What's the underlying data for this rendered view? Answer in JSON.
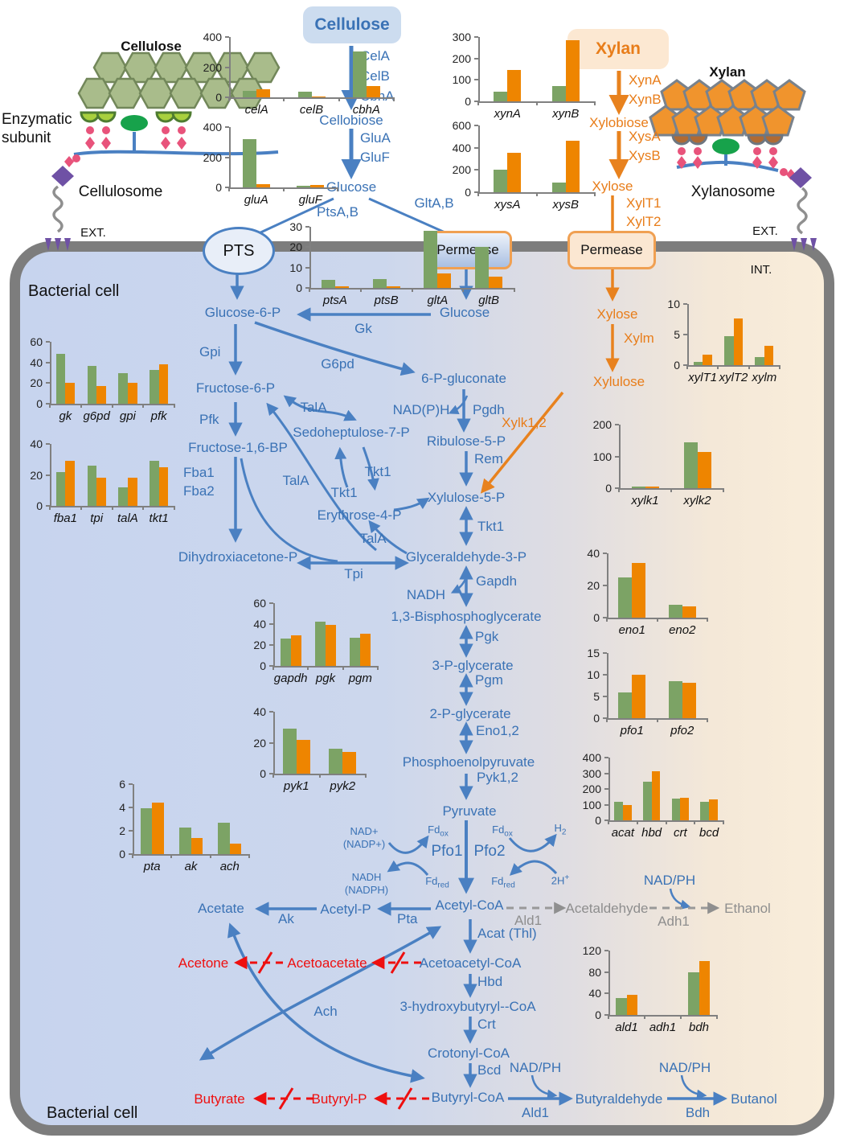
{
  "titles": {
    "cellulose_graphic": "Cellulose",
    "xylan_graphic": "Xylan",
    "enzymatic_subunit": "Enzymatic\nsubunit",
    "cellulosome": "Cellulosome",
    "xylanosome": "Xylanosome",
    "ext": "EXT.",
    "int": "INT.",
    "bacterial_cell": "Bacterial cell",
    "pts": "PTS",
    "permease": "Permease",
    "cellulose_box": "Cellulose",
    "xylan_box": "Xylan"
  },
  "ext": {
    "cela": "CelA",
    "celb": "CelB",
    "cbha": "CbhA",
    "cellobiose": "Cellobiose",
    "glua": "GluA",
    "gluf": "GluF",
    "glucose": "Glucose",
    "ptsab": "PtsA,B",
    "gltab": "GltA,B",
    "xyna": "XynA",
    "xynb": "XynB",
    "xylobiose": "Xylobiose",
    "xysa": "XysA",
    "xysb": "XysB",
    "xylose": "Xylose",
    "xylt1": "XylT1",
    "xylt2": "XylT2"
  },
  "glyc": {
    "glucose6p": "Glucose-6-P",
    "gk": "Gk",
    "glucose": "Glucose",
    "gpi": "Gpi",
    "fructose6p": "Fructose-6-P",
    "pfk": "Pfk",
    "fructose16bp": "Fructose-1,6-BP",
    "fba1": "Fba1",
    "fba2": "Fba2",
    "dhap": "Dihydroxiacetone-P",
    "tpi": "Tpi",
    "g6pd": "G6pd",
    "p6g": "6-P-gluconate",
    "nadph": "NAD(P)H",
    "pgdh": "Pgdh",
    "ribulose5p": "Ribulose-5-P",
    "rem": "Rem",
    "xylulose5p": "Xylulose-5-P",
    "s7p": "Sedoheptulose-7-P",
    "e4p": "Erythrose-4-P",
    "tala": "TalA",
    "tkt1": "Tkt1",
    "g3p": "Glyceraldehyde-3-P",
    "gapdh": "Gapdh",
    "nadh": "NADH",
    "bpg": "1,3-Bisphosphoglycerate",
    "pgk": "Pgk",
    "pg3": "3-P-glycerate",
    "pgm": "Pgm",
    "pg2": "2-P-glycerate",
    "eno": "Eno1,2",
    "pep": "Phosphoenolpyruvate",
    "pyk": "Pyk1,2"
  },
  "xyl": {
    "xylose": "Xylose",
    "xylm": "Xylm",
    "xylulose": "Xylulose",
    "xylk": "Xylk1,2"
  },
  "ferm": {
    "pyruvate": "Pyruvate",
    "pfo1": "Pfo1",
    "pfo2": "Pfo2",
    "nad_nadp": "NAD+\n(NADP+)",
    "nadh_nadph": "NADH\n(NADPH)",
    "fd": "Fd",
    "ox": "ox",
    "red": "red",
    "h": "H",
    "two": "2",
    "twoh": "2H",
    "plus": "+",
    "acetylcoa": "Acetyl-CoA",
    "pta": "Pta",
    "acetylp": "Acetyl-P",
    "ak": "Ak",
    "acetate": "Acetate",
    "ald1": "Ald1",
    "acetaldehyde": "Acetaldehyde",
    "adh1": "Adh1",
    "ethanol": "Ethanol",
    "nadph_cof": "NAD/PH",
    "acat": "Acat (Thl)",
    "acacoa": "Acetoacetyl-CoA",
    "hbd": "Hbd",
    "hbcoa": "3-hydroxybutyryl--CoA",
    "crt": "Crt",
    "crotonyl": "Crotonyl-CoA",
    "bcd": "Bcd",
    "butyrylcoa": "Butyryl-CoA",
    "ach": "Ach",
    "acetone": "Acetone",
    "acetoacetate": "Acetoacetate",
    "butyrate": "Butyrate",
    "butyrylp": "Butyryl-P",
    "butyraldehyde": "Butyraldehyde",
    "bdh": "Bdh",
    "butanol": "Butanol"
  },
  "colors": {
    "blue": "#4a80c2",
    "orange": "#e8821e",
    "green_bar": "#7ca365",
    "orange_bar": "#ee8500",
    "red": "#ee0f0f",
    "gray": "#8f8f8f",
    "membrane": "#7d7d7d"
  },
  "chart_data": [
    {
      "id": "cel",
      "type": "bar",
      "ymax": 400,
      "ticks": [
        0,
        200,
        400
      ],
      "categories": [
        "celA",
        "celB",
        "cbhA"
      ],
      "series": [
        {
          "name": "green",
          "values": [
            45,
            35,
            305
          ]
        },
        {
          "name": "orange",
          "values": [
            55,
            3,
            75
          ]
        }
      ]
    },
    {
      "id": "glu",
      "type": "bar",
      "ymax": 400,
      "ticks": [
        0,
        200,
        400
      ],
      "categories": [
        "gluA",
        "gluF"
      ],
      "series": [
        {
          "name": "green",
          "values": [
            320,
            10
          ]
        },
        {
          "name": "orange",
          "values": [
            20,
            15
          ]
        }
      ]
    },
    {
      "id": "xyn",
      "type": "bar",
      "ymax": 300,
      "ticks": [
        0,
        100,
        200,
        300
      ],
      "categories": [
        "xynA",
        "xynB"
      ],
      "series": [
        {
          "name": "green",
          "values": [
            45,
            70
          ]
        },
        {
          "name": "orange",
          "values": [
            145,
            285
          ]
        }
      ]
    },
    {
      "id": "xys",
      "type": "bar",
      "ymax": 600,
      "ticks": [
        0,
        200,
        400,
        600
      ],
      "categories": [
        "xysA",
        "xysB"
      ],
      "series": [
        {
          "name": "green",
          "values": [
            200,
            85
          ]
        },
        {
          "name": "orange",
          "values": [
            355,
            465
          ]
        }
      ]
    },
    {
      "id": "pts",
      "type": "bar",
      "ymax": 30,
      "ticks": [
        0,
        10,
        20,
        30
      ],
      "categories": [
        "ptsA",
        "ptsB",
        "gltA",
        "gltB"
      ],
      "series": [
        {
          "name": "green",
          "values": [
            4,
            4.2,
            28,
            20
          ]
        },
        {
          "name": "orange",
          "values": [
            0.7,
            0.7,
            7,
            5.7
          ]
        }
      ]
    },
    {
      "id": "gk",
      "type": "bar",
      "ymax": 60,
      "ticks": [
        0,
        20,
        40,
        60
      ],
      "categories": [
        "gk",
        "g6pd",
        "gpi",
        "pfk"
      ],
      "series": [
        {
          "name": "green",
          "values": [
            48,
            37,
            30,
            33
          ]
        },
        {
          "name": "orange",
          "values": [
            20,
            17,
            20,
            38
          ]
        }
      ]
    },
    {
      "id": "fba",
      "type": "bar",
      "ymax": 40,
      "ticks": [
        0,
        20,
        40
      ],
      "categories": [
        "fba1",
        "tpi",
        "talA",
        "tkt1"
      ],
      "series": [
        {
          "name": "green",
          "values": [
            22,
            26,
            12,
            29
          ]
        },
        {
          "name": "orange",
          "values": [
            29,
            18,
            18,
            25
          ]
        }
      ]
    },
    {
      "id": "xylt",
      "type": "bar",
      "ymax": 10,
      "ticks": [
        0,
        5,
        10
      ],
      "categories": [
        "xylT1",
        "xylT2",
        "xylm"
      ],
      "series": [
        {
          "name": "green",
          "values": [
            0.5,
            4.8,
            1.3
          ]
        },
        {
          "name": "orange",
          "values": [
            1.7,
            7.6,
            3.1
          ]
        }
      ]
    },
    {
      "id": "xylk",
      "type": "bar",
      "ymax": 200,
      "ticks": [
        0,
        100,
        200
      ],
      "categories": [
        "xylk1",
        "xylk2"
      ],
      "series": [
        {
          "name": "green",
          "values": [
            4,
            145
          ]
        },
        {
          "name": "orange",
          "values": [
            4,
            115
          ]
        }
      ]
    },
    {
      "id": "gapdh",
      "type": "bar",
      "ymax": 60,
      "ticks": [
        0,
        20,
        40,
        60
      ],
      "categories": [
        "gapdh",
        "pgk",
        "pgm"
      ],
      "series": [
        {
          "name": "green",
          "values": [
            26,
            42,
            27
          ]
        },
        {
          "name": "orange",
          "values": [
            29,
            39,
            31
          ]
        }
      ]
    },
    {
      "id": "pyk",
      "type": "bar",
      "ymax": 40,
      "ticks": [
        0,
        20,
        40
      ],
      "categories": [
        "pyk1",
        "pyk2"
      ],
      "series": [
        {
          "name": "green",
          "values": [
            29,
            16
          ]
        },
        {
          "name": "orange",
          "values": [
            22,
            14
          ]
        }
      ]
    },
    {
      "id": "eno",
      "type": "bar",
      "ymax": 40,
      "ticks": [
        0,
        20,
        40
      ],
      "categories": [
        "eno1",
        "eno2"
      ],
      "series": [
        {
          "name": "green",
          "values": [
            25,
            8
          ]
        },
        {
          "name": "orange",
          "values": [
            34,
            7
          ]
        }
      ]
    },
    {
      "id": "pfo",
      "type": "bar",
      "ymax": 15,
      "ticks": [
        0,
        5,
        10,
        15
      ],
      "categories": [
        "pfo1",
        "pfo2"
      ],
      "series": [
        {
          "name": "green",
          "values": [
            6,
            8.5
          ]
        },
        {
          "name": "orange",
          "values": [
            10,
            8.2
          ]
        }
      ]
    },
    {
      "id": "acat",
      "type": "bar",
      "ymax": 400,
      "ticks": [
        0,
        100,
        200,
        300,
        400
      ],
      "categories": [
        "acat",
        "hbd",
        "crt",
        "bcd"
      ],
      "series": [
        {
          "name": "green",
          "values": [
            120,
            245,
            140,
            120
          ]
        },
        {
          "name": "orange",
          "values": [
            95,
            315,
            145,
            132
          ]
        }
      ]
    },
    {
      "id": "pta",
      "type": "bar",
      "ymax": 6,
      "ticks": [
        0,
        2,
        4,
        6
      ],
      "categories": [
        "pta",
        "ak",
        "ach"
      ],
      "series": [
        {
          "name": "green",
          "values": [
            3.9,
            2.3,
            2.7
          ]
        },
        {
          "name": "orange",
          "values": [
            4.4,
            1.4,
            0.9
          ]
        }
      ]
    },
    {
      "id": "ald",
      "type": "bar",
      "ymax": 120,
      "ticks": [
        0,
        40,
        80,
        120
      ],
      "categories": [
        "ald1",
        "adh1",
        "bdh"
      ],
      "series": [
        {
          "name": "green",
          "values": [
            31,
            0,
            79
          ]
        },
        {
          "name": "orange",
          "values": [
            37,
            0,
            101
          ]
        }
      ]
    }
  ]
}
